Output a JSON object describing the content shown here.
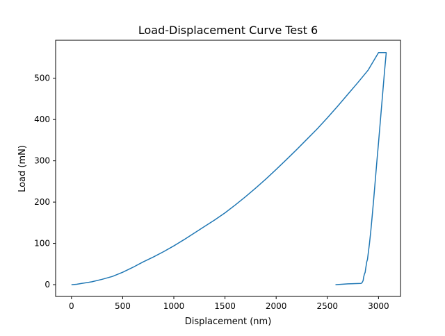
{
  "chart_data": {
    "type": "line",
    "title": "Load-Displacement Curve Test 6",
    "xlabel": "Displacement (nm)",
    "ylabel": "Load (mN)",
    "xlim": [
      -155,
      3215
    ],
    "ylim": [
      -28.5,
      592
    ],
    "xticks": [
      0,
      500,
      1000,
      1500,
      2000,
      2500,
      3000
    ],
    "yticks": [
      0,
      100,
      200,
      300,
      400,
      500
    ],
    "grid": false,
    "legend": "none",
    "line_color": "#1f77b4",
    "series": [
      {
        "x": [
          0,
          50,
          100,
          200,
          300,
          400,
          500,
          600,
          700,
          800,
          900,
          1000,
          1100,
          1200,
          1300,
          1400,
          1500,
          1600,
          1700,
          1800,
          1900,
          2000,
          2100,
          2200,
          2300,
          2400,
          2500,
          2600,
          2700,
          2800,
          2900,
          3000,
          3075,
          3075,
          3060,
          3045,
          3030,
          3015,
          3000,
          2985,
          2970,
          2955,
          2940,
          2925,
          2912,
          2900,
          2892,
          2885,
          2880,
          2875,
          2870,
          2862,
          2855,
          2850,
          2840,
          2830,
          2700,
          2580
        ],
        "y": [
          0,
          1,
          3,
          7,
          13,
          20,
          30,
          42,
          55,
          67,
          80,
          94,
          109,
          125,
          141,
          157,
          174,
          193,
          213,
          234,
          256,
          279,
          303,
          327,
          352,
          377,
          404,
          432,
          461,
          490,
          520,
          562,
          562,
          560,
          520,
          476,
          432,
          388,
          344,
          300,
          256,
          212,
          170,
          130,
          100,
          76,
          61,
          55,
          47,
          40,
          30,
          25,
          18,
          10,
          5,
          3,
          2,
          0
        ]
      }
    ]
  }
}
